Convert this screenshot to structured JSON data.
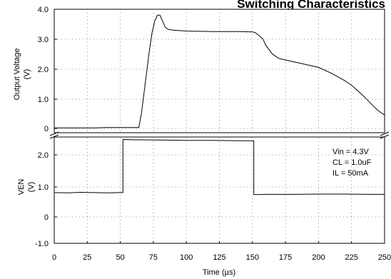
{
  "chart_data": {
    "type": "line",
    "title": "Switching Characteristics",
    "xlabel": "Time (µs)",
    "x_range": [
      0,
      250
    ],
    "x_ticks": [
      "0",
      "25",
      "50",
      "75",
      "100",
      "125",
      "150",
      "175",
      "200",
      "225",
      "250"
    ],
    "grid": true,
    "axis_break": true,
    "annotation": [
      "Vin = 4.3V",
      "CL = 1.0uF",
      "IL = 50mA"
    ],
    "panels": [
      {
        "name": "output",
        "ylabel": [
          "Output Voltage",
          "(V)"
        ],
        "y_range": [
          0,
          4
        ],
        "y_ticks": [
          "4.0",
          "3.0",
          "2.0",
          "1.0",
          "0"
        ],
        "series": [
          {
            "x": [
              0,
              10,
              20,
              30,
              40,
              50,
              60,
              64,
              66,
              68,
              70,
              72,
              74,
              76,
              78,
              80,
              82,
              84,
              86,
              90,
              100,
              110,
              120,
              130,
              140,
              150,
              152,
              155,
              158,
              160,
              165,
              170,
              175,
              180,
              190,
              200,
              210,
              220,
              225,
              230,
              235,
              240,
              245,
              250
            ],
            "y": [
              0.02,
              0.02,
              0.02,
              0.02,
              0.03,
              0.03,
              0.03,
              0.03,
              0.5,
              1.2,
              1.9,
              2.6,
              3.2,
              3.6,
              3.8,
              3.8,
              3.6,
              3.4,
              3.33,
              3.3,
              3.27,
              3.26,
              3.25,
              3.25,
              3.25,
              3.24,
              3.22,
              3.12,
              3.0,
              2.8,
              2.5,
              2.35,
              2.3,
              2.25,
              2.15,
              2.05,
              1.85,
              1.6,
              1.45,
              1.25,
              1.05,
              0.82,
              0.6,
              0.45
            ]
          }
        ]
      },
      {
        "name": "enable",
        "ylabel": [
          "VEN",
          "(V)"
        ],
        "y_range": [
          -1,
          2.5
        ],
        "y_ticks": [
          "2.0",
          "1.0",
          "0",
          "-1.0"
        ],
        "series": [
          {
            "x": [
              0,
              10,
              20,
              30,
              40,
              50,
              52,
              52.01,
              60,
              80,
              100,
              120,
              140,
              151,
              151.01,
              160,
              180,
              200,
              220,
              240,
              250
            ],
            "y": [
              0.72,
              0.71,
              0.73,
              0.72,
              0.71,
              0.72,
              0.72,
              2.52,
              2.51,
              2.5,
              2.49,
              2.49,
              2.48,
              2.48,
              0.65,
              0.66,
              0.66,
              0.67,
              0.67,
              0.66,
              0.66
            ]
          }
        ]
      }
    ]
  }
}
